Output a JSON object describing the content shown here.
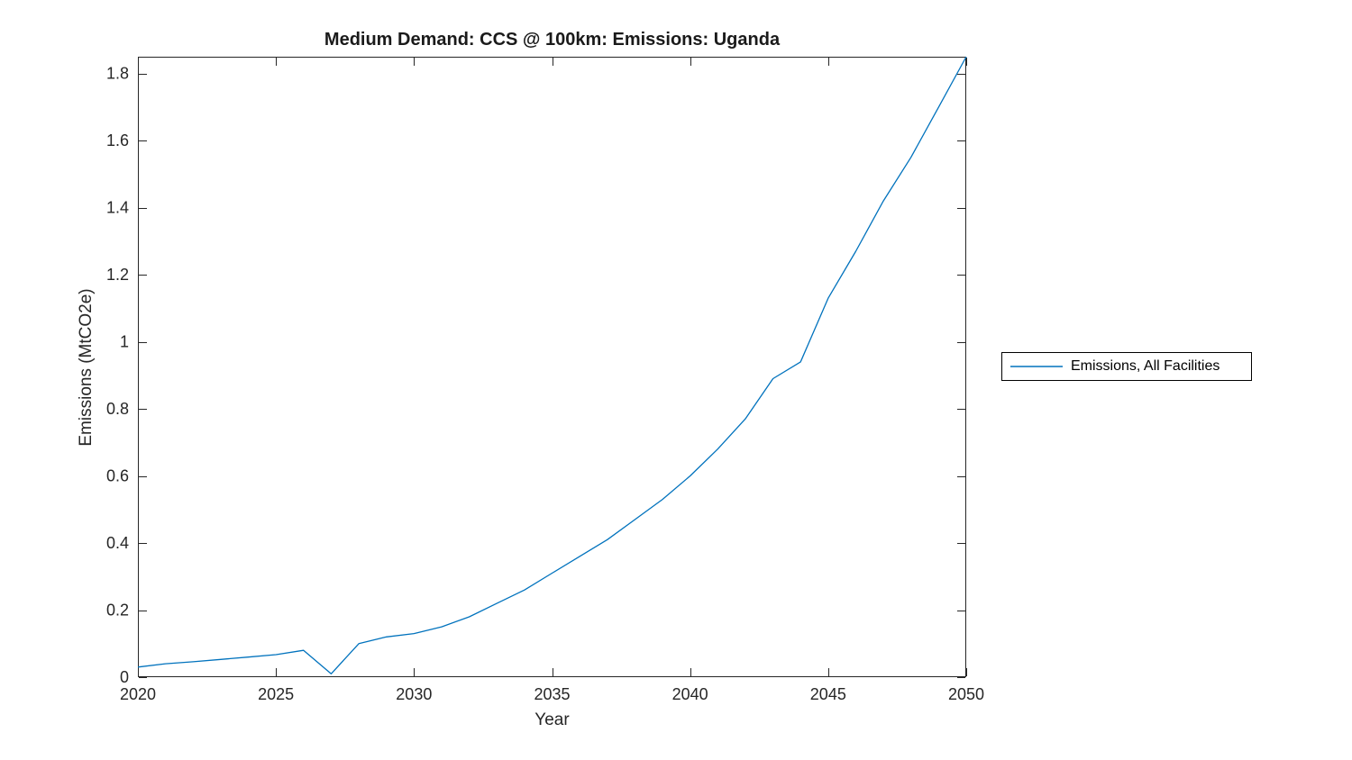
{
  "figure": {
    "background": "#ffffff"
  },
  "chart_data": {
    "type": "line",
    "title": "Medium Demand: CCS @ 100km: Emissions: Uganda",
    "xlabel": "Year",
    "ylabel": "Emissions (MtCO2e)",
    "xlim": [
      2020,
      2050
    ],
    "ylim": [
      0,
      1.85
    ],
    "x_ticks": [
      2020,
      2025,
      2030,
      2035,
      2040,
      2045,
      2050
    ],
    "x_tick_labels": [
      "2020",
      "2025",
      "2030",
      "2035",
      "2040",
      "2045",
      "2050"
    ],
    "y_ticks": [
      0,
      0.2,
      0.4,
      0.6,
      0.8,
      1,
      1.2,
      1.4,
      1.6,
      1.8
    ],
    "y_tick_labels": [
      "0",
      "0.2",
      "0.4",
      "0.6",
      "0.8",
      "1",
      "1.2",
      "1.4",
      "1.6",
      "1.8"
    ],
    "grid": false,
    "axis_color": "#262626",
    "tick_direction": "in",
    "box": true,
    "legend_position": "right-outside",
    "x": [
      2020,
      2021,
      2022,
      2023,
      2024,
      2025,
      2026,
      2027,
      2028,
      2029,
      2030,
      2031,
      2032,
      2033,
      2034,
      2035,
      2036,
      2037,
      2038,
      2039,
      2040,
      2041,
      2042,
      2043,
      2044,
      2045,
      2046,
      2047,
      2048,
      2049,
      2050
    ],
    "series": [
      {
        "name": "Emissions, All Facilities",
        "color": "#0072BD",
        "values": [
          0.03,
          0.04,
          0.046,
          0.053,
          0.06,
          0.067,
          0.08,
          0.01,
          0.1,
          0.12,
          0.13,
          0.15,
          0.18,
          0.22,
          0.26,
          0.31,
          0.36,
          0.41,
          0.47,
          0.53,
          0.6,
          0.68,
          0.77,
          0.89,
          0.94,
          1.13,
          1.27,
          1.42,
          1.55,
          1.7,
          1.85
        ]
      }
    ]
  }
}
